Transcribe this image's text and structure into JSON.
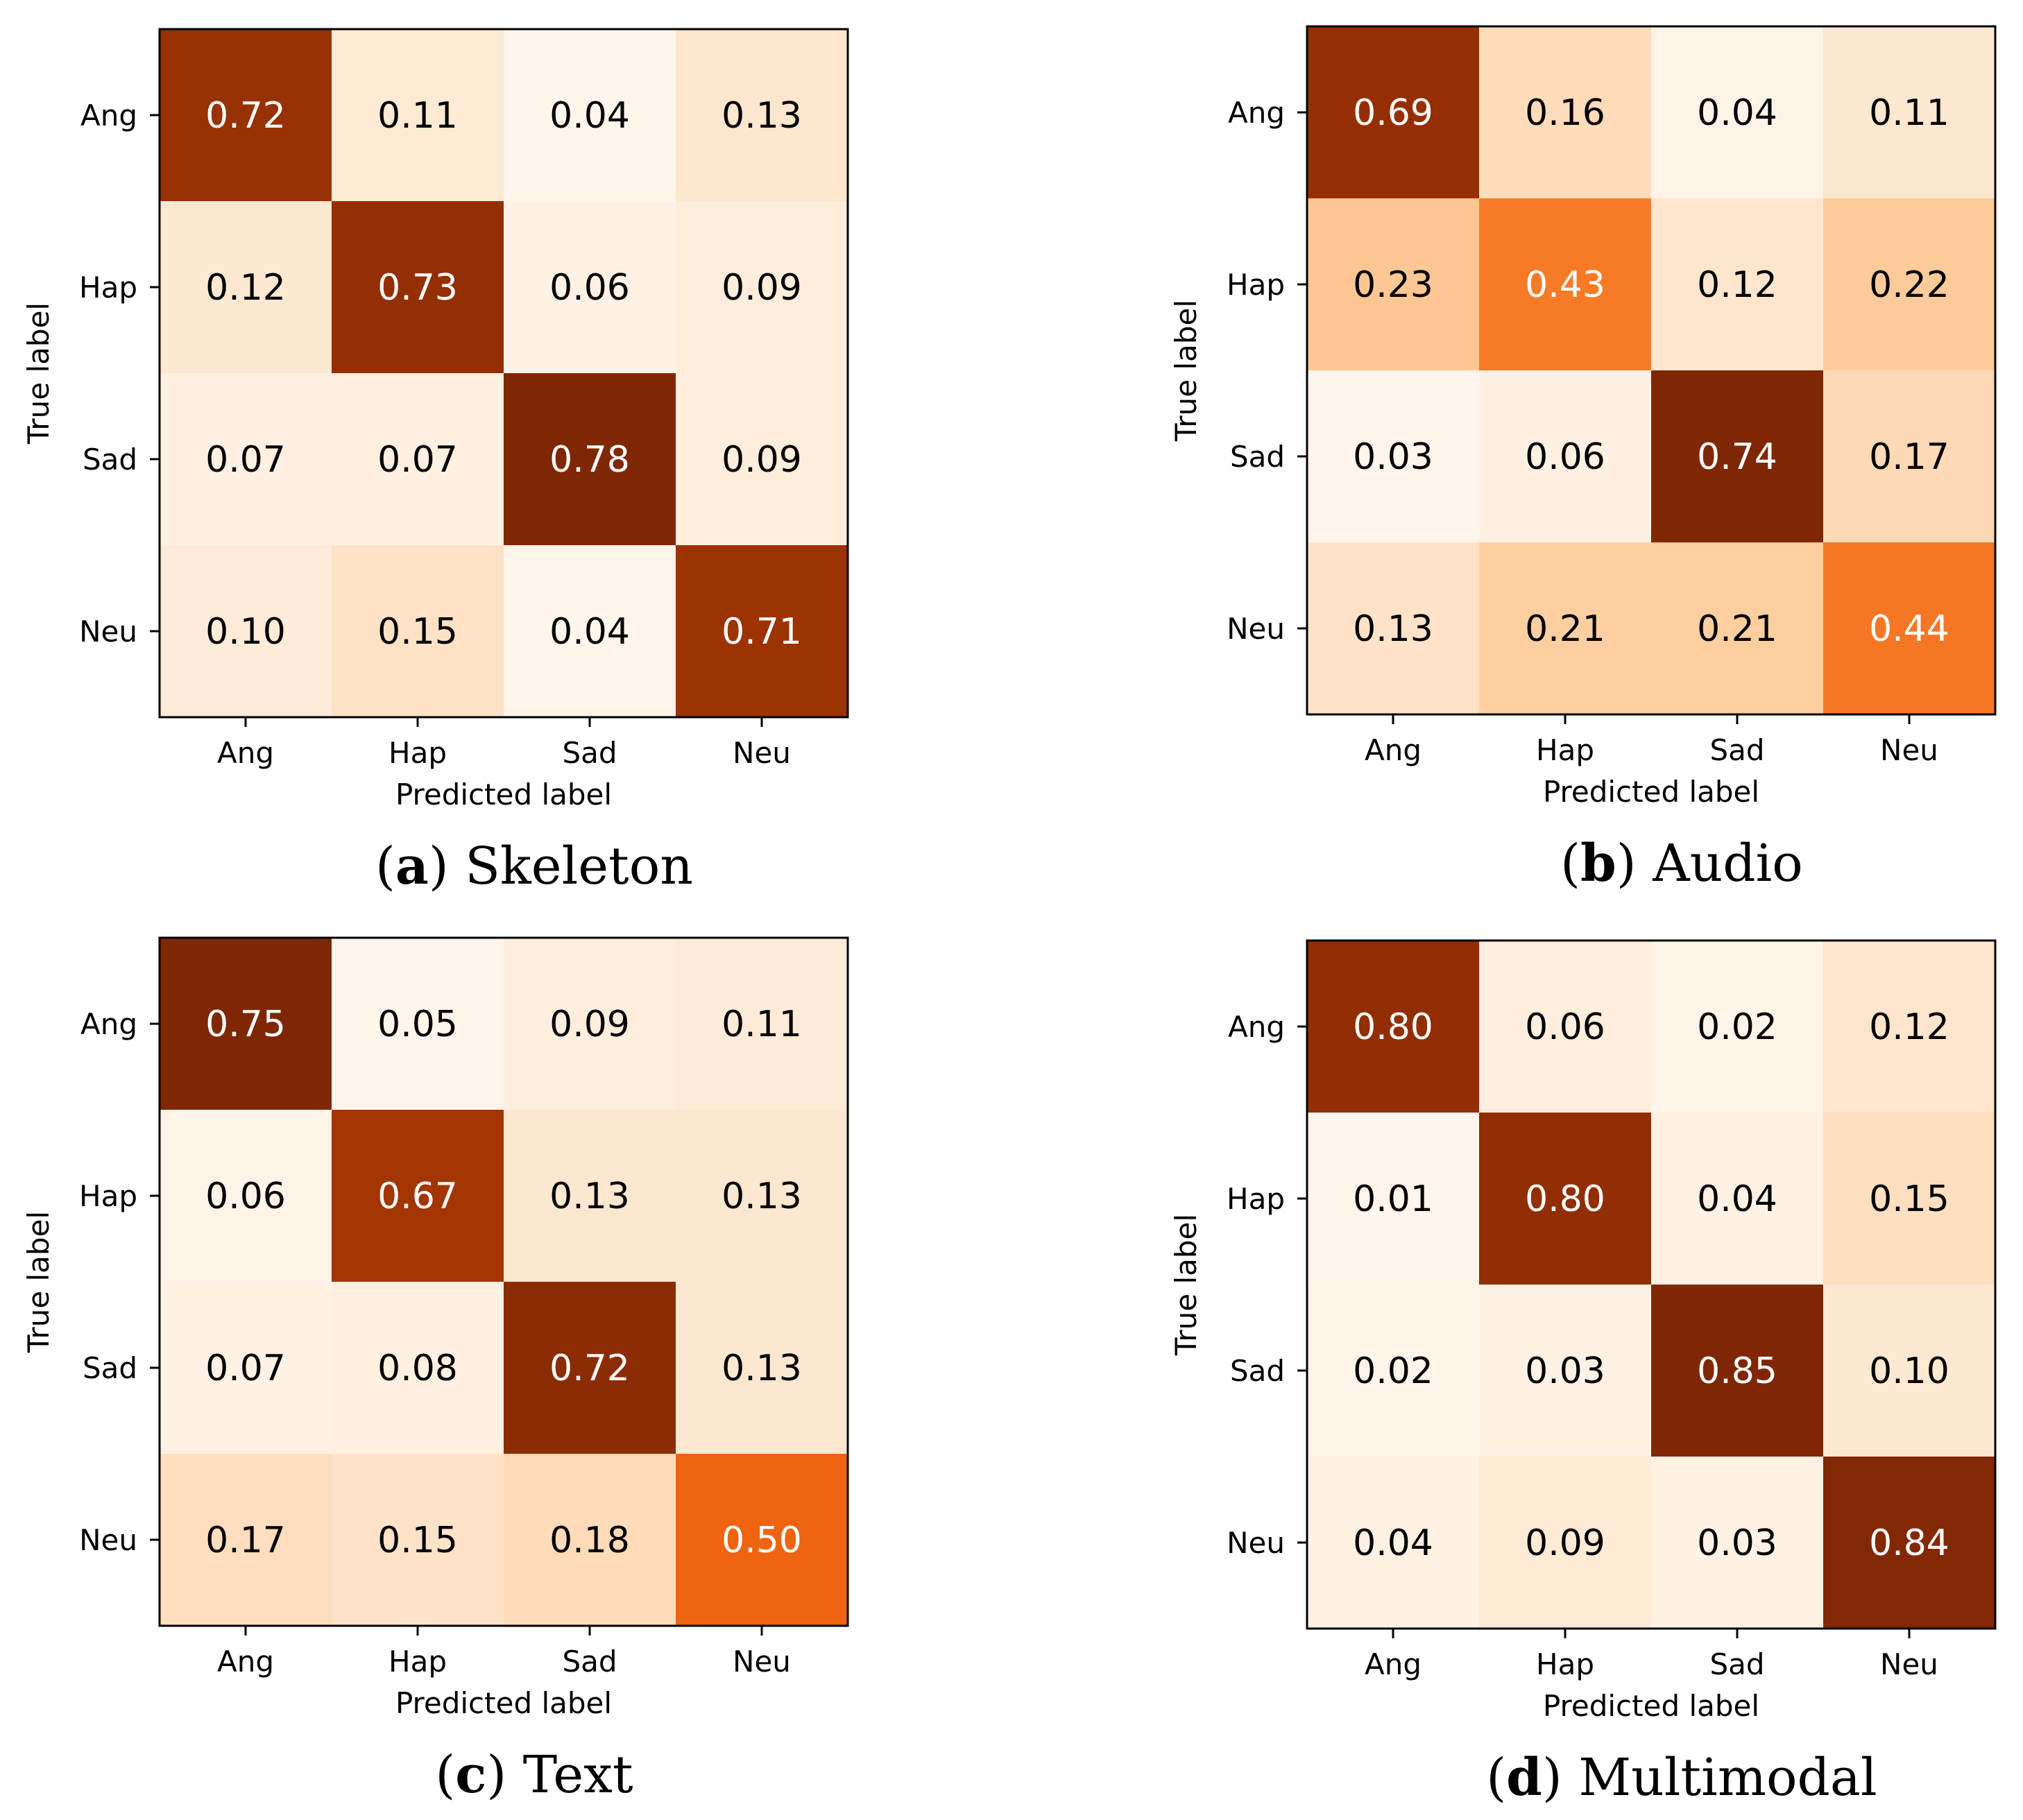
{
  "figure": {
    "colormap": "Oranges",
    "color_stops": [
      "#fff5eb",
      "#fee6ce",
      "#fdd0a2",
      "#fdae6b",
      "#fd8d3c",
      "#f16913",
      "#d94801",
      "#a63603",
      "#7f2704"
    ]
  },
  "chart_data": [
    {
      "type": "heatmap",
      "panel_letter": "a",
      "caption_title": "Skeleton",
      "row_labels": [
        "Ang",
        "Hap",
        "Sad",
        "Neu"
      ],
      "col_labels": [
        "Ang",
        "Hap",
        "Sad",
        "Neu"
      ],
      "xlabel": "Predicted label",
      "ylabel": "True label",
      "values": [
        [
          0.72,
          0.11,
          0.04,
          0.13
        ],
        [
          0.12,
          0.73,
          0.06,
          0.09
        ],
        [
          0.07,
          0.07,
          0.78,
          0.09
        ],
        [
          0.1,
          0.15,
          0.04,
          0.71
        ]
      ],
      "value_labels": [
        [
          "0.72",
          "0.11",
          "0.04",
          "0.13"
        ],
        [
          "0.12",
          "0.73",
          "0.06",
          "0.09"
        ],
        [
          "0.07",
          "0.07",
          "0.78",
          "0.09"
        ],
        [
          "0.10",
          "0.15",
          "0.04",
          "0.71"
        ]
      ]
    },
    {
      "type": "heatmap",
      "panel_letter": "b",
      "caption_title": "Audio",
      "row_labels": [
        "Ang",
        "Hap",
        "Sad",
        "Neu"
      ],
      "col_labels": [
        "Ang",
        "Hap",
        "Sad",
        "Neu"
      ],
      "xlabel": "Predicted label",
      "ylabel": "True label",
      "values": [
        [
          0.69,
          0.16,
          0.04,
          0.11
        ],
        [
          0.23,
          0.43,
          0.12,
          0.22
        ],
        [
          0.03,
          0.06,
          0.74,
          0.17
        ],
        [
          0.13,
          0.21,
          0.21,
          0.44
        ]
      ],
      "value_labels": [
        [
          "0.69",
          "0.16",
          "0.04",
          "0.11"
        ],
        [
          "0.23",
          "0.43",
          "0.12",
          "0.22"
        ],
        [
          "0.03",
          "0.06",
          "0.74",
          "0.17"
        ],
        [
          "0.13",
          "0.21",
          "0.21",
          "0.44"
        ]
      ]
    },
    {
      "type": "heatmap",
      "panel_letter": "c",
      "caption_title": "Text",
      "row_labels": [
        "Ang",
        "Hap",
        "Sad",
        "Neu"
      ],
      "col_labels": [
        "Ang",
        "Hap",
        "Sad",
        "Neu"
      ],
      "xlabel": "Predicted label",
      "ylabel": "True label",
      "values": [
        [
          0.75,
          0.05,
          0.09,
          0.11
        ],
        [
          0.06,
          0.67,
          0.13,
          0.13
        ],
        [
          0.07,
          0.08,
          0.72,
          0.13
        ],
        [
          0.17,
          0.15,
          0.18,
          0.5
        ]
      ],
      "value_labels": [
        [
          "0.75",
          "0.05",
          "0.09",
          "0.11"
        ],
        [
          "0.06",
          "0.67",
          "0.13",
          "0.13"
        ],
        [
          "0.07",
          "0.08",
          "0.72",
          "0.13"
        ],
        [
          "0.17",
          "0.15",
          "0.18",
          "0.50"
        ]
      ]
    },
    {
      "type": "heatmap",
      "panel_letter": "d",
      "caption_title": "Multimodal",
      "row_labels": [
        "Ang",
        "Hap",
        "Sad",
        "Neu"
      ],
      "col_labels": [
        "Ang",
        "Hap",
        "Sad",
        "Neu"
      ],
      "xlabel": "Predicted label",
      "ylabel": "True label",
      "values": [
        [
          0.8,
          0.06,
          0.02,
          0.12
        ],
        [
          0.01,
          0.8,
          0.04,
          0.15
        ],
        [
          0.02,
          0.03,
          0.85,
          0.1
        ],
        [
          0.04,
          0.09,
          0.03,
          0.84
        ]
      ],
      "value_labels": [
        [
          "0.80",
          "0.06",
          "0.02",
          "0.12"
        ],
        [
          "0.01",
          "0.80",
          "0.04",
          "0.15"
        ],
        [
          "0.02",
          "0.03",
          "0.85",
          "0.10"
        ],
        [
          "0.04",
          "0.09",
          "0.03",
          "0.84"
        ]
      ]
    }
  ]
}
